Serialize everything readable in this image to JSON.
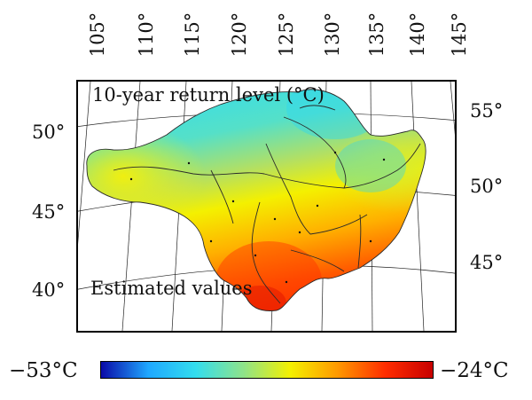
{
  "top_longitudes": [
    "105°",
    "110°",
    "115°",
    "120°",
    "125°",
    "130°",
    "135°",
    "140°",
    "145°"
  ],
  "left_latitudes": [
    "50°",
    "45°",
    "40°"
  ],
  "right_latitudes": [
    "55°",
    "50°",
    "45°"
  ],
  "map_title": "10-year return level (°C)",
  "map_caption": "Estimated values",
  "colorbar": {
    "min_label": "−53°C",
    "max_label": "−24°C",
    "min_value": -53,
    "max_value": -24,
    "colors": [
      "#0a0aa8",
      "#1fa8ff",
      "#33ddee",
      "#8ee38a",
      "#f4f000",
      "#ff9800",
      "#ff2d00",
      "#c80000"
    ]
  }
}
